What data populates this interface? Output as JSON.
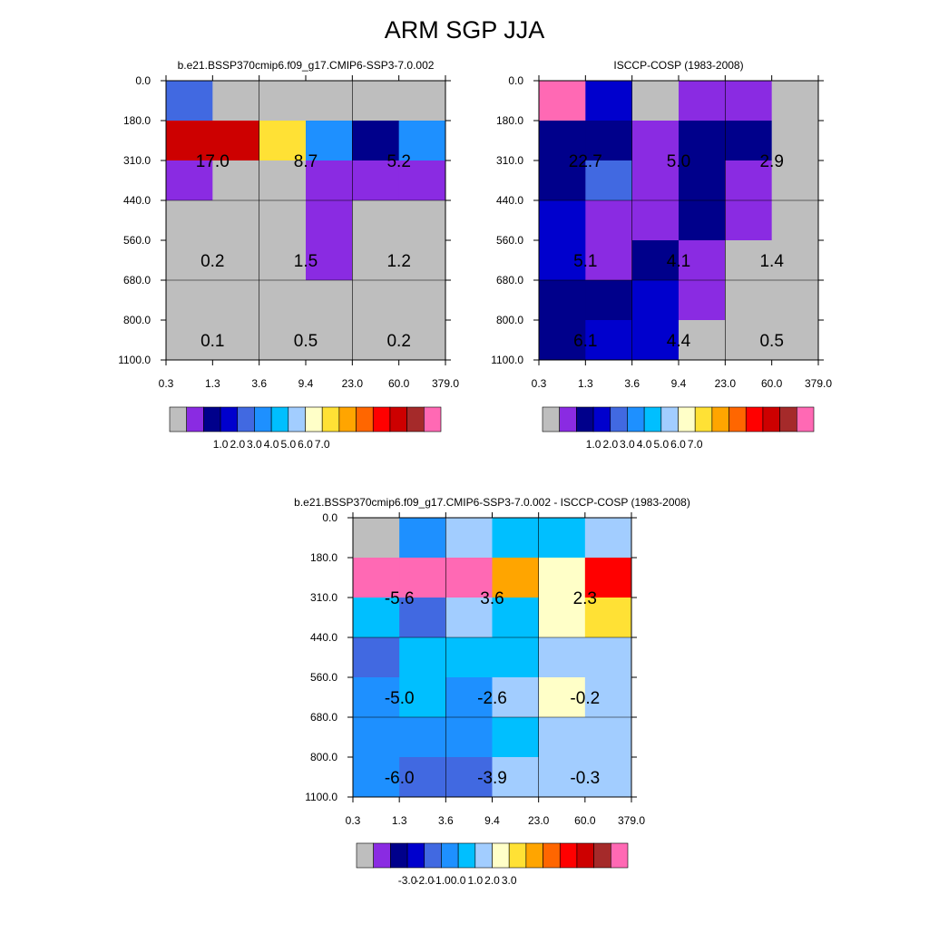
{
  "title": "ARM SGP JJA",
  "colors": {
    "abs": [
      "#bebebe",
      "#8a2be2",
      "#00008b",
      "#0000cd",
      "#4169e1",
      "#1e90ff",
      "#00bfff",
      "#a2cdff",
      "#ffffc8",
      "#ffe135",
      "#ffa500",
      "#ff6600",
      "#ff0000",
      "#cd0000",
      "#a52a2a",
      "#ff69b4"
    ],
    "diff": [
      "#bebebe",
      "#8a2be2",
      "#00008b",
      "#0000cd",
      "#4169e1",
      "#1e90ff",
      "#00bfff",
      "#a2cdff",
      "#ffffc8",
      "#ffe135",
      "#ffa500",
      "#ff6600",
      "#ff0000",
      "#cd0000",
      "#a52a2a",
      "#ff69b4"
    ]
  },
  "chart_data": [
    {
      "type": "heatmap",
      "title": "b.e21.BSSP370cmip6.f09_g17.CMIP6-SSP3-7.0.002",
      "x_ticks": [
        "0.3",
        "1.3",
        "3.6",
        "9.4",
        "23.0",
        "60.0",
        "379.0"
      ],
      "y_ticks": [
        "0.0",
        "180.0",
        "310.0",
        "440.0",
        "560.0",
        "680.0",
        "800.0",
        "1100.0"
      ],
      "cells": [
        [
          4,
          0,
          0,
          0,
          0,
          0
        ],
        [
          13,
          13,
          9,
          5,
          2,
          5
        ],
        [
          1,
          0,
          0,
          1,
          1,
          1
        ],
        [
          0,
          0,
          0,
          1,
          0,
          0
        ],
        [
          0,
          0,
          0,
          1,
          0,
          0
        ],
        [
          0,
          0,
          0,
          0,
          0,
          0
        ],
        [
          0,
          0,
          0,
          0,
          0,
          0
        ]
      ],
      "labels": [
        {
          "text": "17.0",
          "col": 1,
          "row": 1.5
        },
        {
          "text": "8.7",
          "col": 3,
          "row": 1.5
        },
        {
          "text": "5.2",
          "col": 5,
          "row": 1.5
        },
        {
          "text": "0.2",
          "col": 1,
          "row": 4
        },
        {
          "text": "1.5",
          "col": 3,
          "row": 4
        },
        {
          "text": "1.2",
          "col": 5,
          "row": 4
        },
        {
          "text": "0.1",
          "col": 1,
          "row": 6
        },
        {
          "text": "0.5",
          "col": 3,
          "row": 6
        },
        {
          "text": "0.2",
          "col": 5,
          "row": 6
        }
      ],
      "legend_colors": "abs",
      "legend_labels": [
        "1.0",
        "2.0",
        "3.0",
        "4.0",
        "5.0",
        "6.0",
        "7.0"
      ]
    },
    {
      "type": "heatmap",
      "title": "ISCCP-COSP (1983-2008)",
      "x_ticks": [
        "0.3",
        "1.3",
        "3.6",
        "9.4",
        "23.0",
        "60.0",
        "379.0"
      ],
      "y_ticks": [
        "0.0",
        "180.0",
        "310.0",
        "440.0",
        "560.0",
        "680.0",
        "800.0",
        "1100.0"
      ],
      "cells": [
        [
          15,
          3,
          0,
          1,
          1,
          0
        ],
        [
          2,
          2,
          1,
          2,
          2,
          0
        ],
        [
          2,
          4,
          1,
          2,
          1,
          0
        ],
        [
          3,
          1,
          1,
          2,
          1,
          0
        ],
        [
          3,
          1,
          2,
          1,
          0,
          0
        ],
        [
          2,
          2,
          3,
          1,
          0,
          0
        ],
        [
          2,
          3,
          3,
          0,
          0,
          0
        ]
      ],
      "labels": [
        {
          "text": "22.7",
          "col": 1,
          "row": 1.5
        },
        {
          "text": "5.0",
          "col": 3,
          "row": 1.5
        },
        {
          "text": "2.9",
          "col": 5,
          "row": 1.5
        },
        {
          "text": "5.1",
          "col": 1,
          "row": 4
        },
        {
          "text": "4.1",
          "col": 3,
          "row": 4
        },
        {
          "text": "1.4",
          "col": 5,
          "row": 4
        },
        {
          "text": "6.1",
          "col": 1,
          "row": 6
        },
        {
          "text": "4.4",
          "col": 3,
          "row": 6
        },
        {
          "text": "0.5",
          "col": 5,
          "row": 6
        }
      ],
      "legend_colors": "abs",
      "legend_labels": [
        "1.0",
        "2.0",
        "3.0",
        "4.0",
        "5.0",
        "6.0",
        "7.0"
      ]
    },
    {
      "type": "heatmap",
      "title": "b.e21.BSSP370cmip6.f09_g17.CMIP6-SSP3-7.0.002 - ISCCP-COSP (1983-2008)",
      "x_ticks": [
        "0.3",
        "1.3",
        "3.6",
        "9.4",
        "23.0",
        "60.0",
        "379.0"
      ],
      "y_ticks": [
        "0.0",
        "180.0",
        "310.0",
        "440.0",
        "560.0",
        "680.0",
        "800.0",
        "1100.0"
      ],
      "cells": [
        [
          0,
          5,
          7,
          6,
          6,
          7
        ],
        [
          15,
          15,
          15,
          10,
          8,
          12
        ],
        [
          6,
          4,
          7,
          6,
          8,
          9
        ],
        [
          4,
          6,
          6,
          6,
          7,
          7
        ],
        [
          5,
          6,
          5,
          7,
          8,
          7
        ],
        [
          5,
          5,
          5,
          6,
          7,
          7
        ],
        [
          5,
          4,
          4,
          7,
          7,
          7
        ]
      ],
      "labels": [
        {
          "text": "-5.6",
          "col": 1,
          "row": 1.5
        },
        {
          "text": "3.6",
          "col": 3,
          "row": 1.5
        },
        {
          "text": "2.3",
          "col": 5,
          "row": 1.5
        },
        {
          "text": "-5.0",
          "col": 1,
          "row": 4
        },
        {
          "text": "-2.6",
          "col": 3,
          "row": 4
        },
        {
          "text": "-0.2",
          "col": 5,
          "row": 4
        },
        {
          "text": "-6.0",
          "col": 1,
          "row": 6
        },
        {
          "text": "-3.9",
          "col": 3,
          "row": 6
        },
        {
          "text": "-0.3",
          "col": 5,
          "row": 6
        }
      ],
      "legend_colors": "diff",
      "legend_labels": [
        "-3.0",
        "-2.0",
        "-1.0",
        "0.0",
        "1.0",
        "2.0",
        "3.0"
      ]
    }
  ]
}
